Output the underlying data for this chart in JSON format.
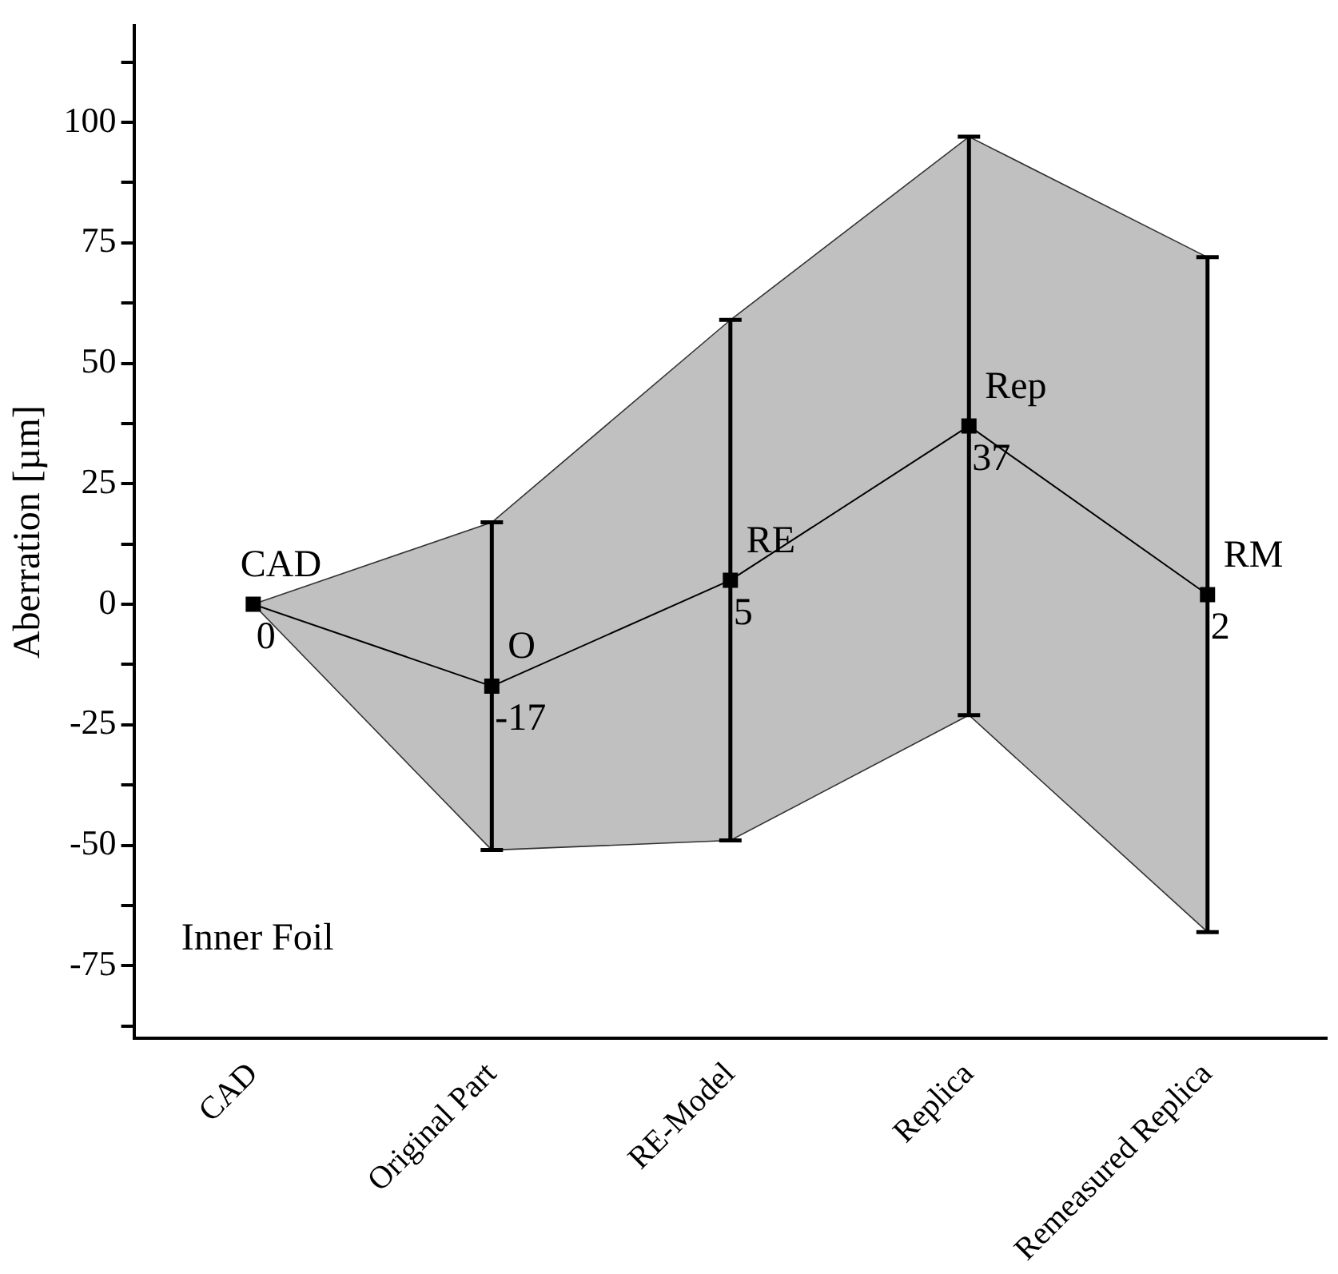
{
  "chart_data": {
    "type": "line",
    "ylabel": "Aberration [µm]",
    "categories": [
      "CAD",
      "Original Part",
      "RE-Model",
      "Replica",
      "Remeasured Replica"
    ],
    "series": [
      {
        "values": [
          0,
          -17,
          5,
          37,
          2
        ],
        "color": "#000000",
        "errors": [
          null,
          34,
          54,
          60,
          70
        ],
        "lower": [
          0,
          -51,
          -49,
          -23,
          -68
        ],
        "upper": [
          0,
          17,
          59,
          97,
          72
        ]
      }
    ],
    "data_labels": true,
    "marker": "square",
    "line_style": "solid",
    "grid": false,
    "legend": false,
    "ylim": [
      -90,
      120
    ],
    "yticks": [
      {
        "value": -87.5,
        "label": null
      },
      -75,
      {
        "value": -62.5,
        "label": null
      },
      -50,
      {
        "value": -37.5,
        "label": null
      },
      -25,
      {
        "value": -12.5,
        "label": null
      },
      0,
      {
        "value": 12.5,
        "label": null
      },
      25,
      {
        "value": 37.5,
        "label": null
      },
      50,
      {
        "value": 62.5,
        "label": null
      },
      75,
      {
        "value": 87.5,
        "label": null
      },
      100,
      {
        "value": 112.5,
        "label": null
      }
    ],
    "annotations": [
      {
        "text": "CAD",
        "x": "CAD",
        "y": 0
      },
      {
        "text": "O",
        "x": "Original Part",
        "y": -17
      },
      {
        "text": "RE",
        "x": "RE-Model",
        "y": 5
      },
      {
        "text": "Rep",
        "x": "Replica",
        "y": 37
      },
      {
        "text": "RM",
        "x": "Remeasured Replica",
        "y": 2
      },
      "Inner Foil"
    ]
  }
}
